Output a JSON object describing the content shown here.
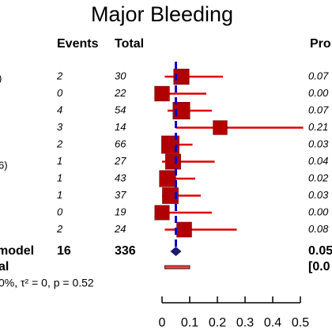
{
  "title": "Major Bleeding",
  "columns": {
    "events": "Events",
    "total": "Total",
    "prop_partial": "Pro"
  },
  "clipped_group_labels": [
    ")",
    "6)"
  ],
  "summary": {
    "label_partial": "model",
    "events": "16",
    "total": "336",
    "prop_partial": "0.05",
    "second_label_partial": "al",
    "ci_partial": "[0.0"
  },
  "heterogeneity_partial": "0%, τ² = 0, p = 0.52",
  "chart_data": {
    "type": "forest",
    "title": "Major Bleeding",
    "xlim": [
      0,
      0.5
    ],
    "xticks": [
      "0",
      "0.1",
      "0.2",
      "0.3",
      "0.4",
      "0.5"
    ],
    "reference_line": 0.05,
    "studies": [
      {
        "events": "2",
        "total": "30",
        "prop_text": "0.07",
        "est": 0.07,
        "lo": 0.01,
        "hi": 0.22
      },
      {
        "events": "0",
        "total": "22",
        "prop_text": "0.00",
        "est": 0.0,
        "lo": 0.0,
        "hi": 0.16
      },
      {
        "events": "4",
        "total": "54",
        "prop_text": "0.07",
        "est": 0.07,
        "lo": 0.02,
        "hi": 0.18
      },
      {
        "events": "3",
        "total": "14",
        "prop_text": "0.21",
        "est": 0.21,
        "lo": 0.05,
        "hi": 0.51
      },
      {
        "events": "2",
        "total": "66",
        "prop_text": "0.03",
        "est": 0.03,
        "lo": 0.0,
        "hi": 0.11
      },
      {
        "events": "1",
        "total": "27",
        "prop_text": "0.04",
        "est": 0.04,
        "lo": 0.0,
        "hi": 0.19
      },
      {
        "events": "1",
        "total": "43",
        "prop_text": "0.02",
        "est": 0.02,
        "lo": 0.0,
        "hi": 0.12
      },
      {
        "events": "1",
        "total": "37",
        "prop_text": "0.03",
        "est": 0.03,
        "lo": 0.0,
        "hi": 0.14
      },
      {
        "events": "0",
        "total": "19",
        "prop_text": "0.00",
        "est": 0.0,
        "lo": 0.0,
        "hi": 0.18
      },
      {
        "events": "2",
        "total": "24",
        "prop_text": "0.08",
        "est": 0.08,
        "lo": 0.01,
        "hi": 0.27
      }
    ],
    "pooled": {
      "est": 0.05,
      "lo": 0.03,
      "hi": 0.07
    },
    "prediction_interval": {
      "lo": 0.01,
      "hi": 0.1
    },
    "colors": {
      "square": "#b00000",
      "ci": "#e00000",
      "diamond": "#1a1a6e",
      "reference": "#0000cc",
      "prediction": "#ff4040"
    }
  }
}
